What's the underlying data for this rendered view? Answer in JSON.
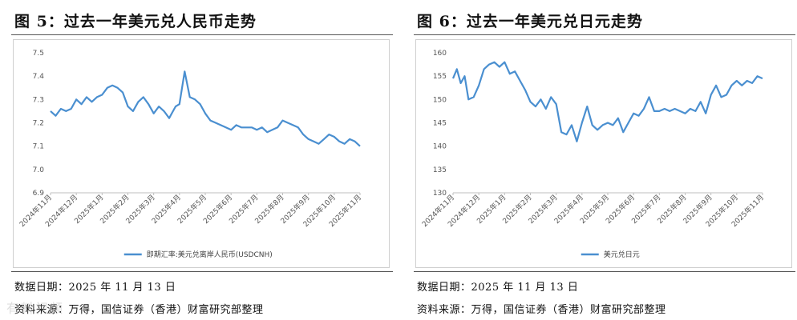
{
  "left": {
    "title": "图 5：过去一年美元兑人民币走势",
    "data_date": "数据日期：2025 年 11 月 13 日",
    "source": "资料来源：万得，国信证券（香港）财富研究部整理"
  },
  "right": {
    "title": "图 6：过去一年美元兑日元走势",
    "data_date": "数据日期：2025 年 11 月 13 日",
    "source": "资料来源：万得，国信证券（香港）财富研究部整理"
  },
  "watermark": "有料视频",
  "chart_data": [
    {
      "type": "line",
      "title": "过去一年美元兑人民币走势",
      "color": "#4a8fd0",
      "ylim": [
        6.9,
        7.5
      ],
      "yticks": [
        "6.9",
        "7.0",
        "7.1",
        "7.2",
        "7.3",
        "7.4",
        "7.5"
      ],
      "x_tick_labels": [
        "2024年11月",
        "2024年12月",
        "2025年1月",
        "2025年2月",
        "2025年3月",
        "2025年4月",
        "2025年5月",
        "2025年6月",
        "2025年7月",
        "2025年8月",
        "2025年9月",
        "2025年10月",
        "2025年11月"
      ],
      "grid": false,
      "legend_position": "bottom",
      "series": [
        {
          "name": "即期汇率:美元兑离岸人民币(USDCNH)",
          "x": [
            0,
            0.2,
            0.4,
            0.6,
            0.8,
            1.0,
            1.2,
            1.4,
            1.6,
            1.8,
            2.0,
            2.2,
            2.4,
            2.6,
            2.8,
            3.0,
            3.2,
            3.4,
            3.6,
            3.8,
            4.0,
            4.2,
            4.4,
            4.6,
            4.75,
            4.85,
            5.0,
            5.2,
            5.4,
            5.6,
            5.8,
            6.0,
            6.2,
            6.4,
            6.6,
            6.8,
            7.0,
            7.2,
            7.4,
            7.6,
            7.8,
            8.0,
            8.2,
            8.4,
            8.6,
            8.8,
            9.0,
            9.2,
            9.4,
            9.6,
            9.8,
            10.0,
            10.2,
            10.4,
            10.6,
            10.8,
            11.0,
            11.2,
            11.4,
            11.6,
            11.8,
            12.0
          ],
          "y": [
            7.25,
            7.23,
            7.26,
            7.25,
            7.26,
            7.3,
            7.28,
            7.31,
            7.29,
            7.31,
            7.32,
            7.35,
            7.36,
            7.35,
            7.33,
            7.27,
            7.25,
            7.29,
            7.31,
            7.28,
            7.24,
            7.27,
            7.25,
            7.22,
            7.25,
            7.27,
            7.28,
            7.42,
            7.31,
            7.3,
            7.28,
            7.24,
            7.21,
            7.2,
            7.19,
            7.18,
            7.17,
            7.19,
            7.18,
            7.18,
            7.18,
            7.17,
            7.18,
            7.16,
            7.17,
            7.18,
            7.21,
            7.2,
            7.19,
            7.18,
            7.15,
            7.13,
            7.12,
            7.11,
            7.13,
            7.15,
            7.14,
            7.12,
            7.11,
            7.13,
            7.12,
            7.1
          ]
        }
      ]
    },
    {
      "type": "line",
      "title": "过去一年美元兑日元走势",
      "color": "#4a8fd0",
      "ylim": [
        130,
        160
      ],
      "yticks": [
        "130",
        "135",
        "140",
        "145",
        "150",
        "155",
        "160"
      ],
      "x_tick_labels": [
        "2024年11月",
        "2024年12月",
        "2025年1月",
        "2025年2月",
        "2025年3月",
        "2025年4月",
        "2025年5月",
        "2025年6月",
        "2025年7月",
        "2025年8月",
        "2025年9月",
        "2025年10月",
        "2025年11月"
      ],
      "grid": false,
      "legend_position": "bottom",
      "series": [
        {
          "name": "美元兑日元",
          "x": [
            0,
            0.15,
            0.3,
            0.45,
            0.6,
            0.8,
            1.0,
            1.2,
            1.4,
            1.6,
            1.8,
            2.0,
            2.2,
            2.4,
            2.6,
            2.8,
            3.0,
            3.2,
            3.4,
            3.6,
            3.8,
            4.0,
            4.2,
            4.4,
            4.6,
            4.8,
            5.0,
            5.2,
            5.4,
            5.6,
            5.8,
            6.0,
            6.2,
            6.4,
            6.6,
            6.8,
            7.0,
            7.2,
            7.4,
            7.6,
            7.8,
            8.0,
            8.2,
            8.4,
            8.6,
            8.8,
            9.0,
            9.2,
            9.4,
            9.6,
            9.8,
            10.0,
            10.2,
            10.4,
            10.6,
            10.8,
            11.0,
            11.2,
            11.4,
            11.6,
            11.8,
            12.0
          ],
          "y": [
            154.5,
            156.5,
            153.5,
            155.0,
            150.0,
            150.5,
            153.0,
            156.5,
            157.5,
            158.0,
            157.0,
            158.0,
            155.5,
            156.0,
            154.0,
            152.0,
            149.5,
            148.5,
            150.0,
            148.0,
            150.5,
            149.0,
            143.0,
            142.5,
            144.5,
            141.0,
            145.0,
            148.5,
            144.5,
            143.5,
            144.5,
            145.0,
            144.5,
            146.0,
            143.0,
            145.0,
            147.0,
            146.5,
            148.0,
            150.5,
            147.5,
            147.5,
            148.0,
            147.5,
            148.0,
            147.5,
            147.0,
            148.0,
            147.5,
            149.5,
            147.0,
            151.0,
            153.0,
            150.5,
            151.0,
            153.0,
            154.0,
            153.0,
            154.0,
            153.5,
            155.0,
            154.5
          ]
        }
      ]
    }
  ]
}
